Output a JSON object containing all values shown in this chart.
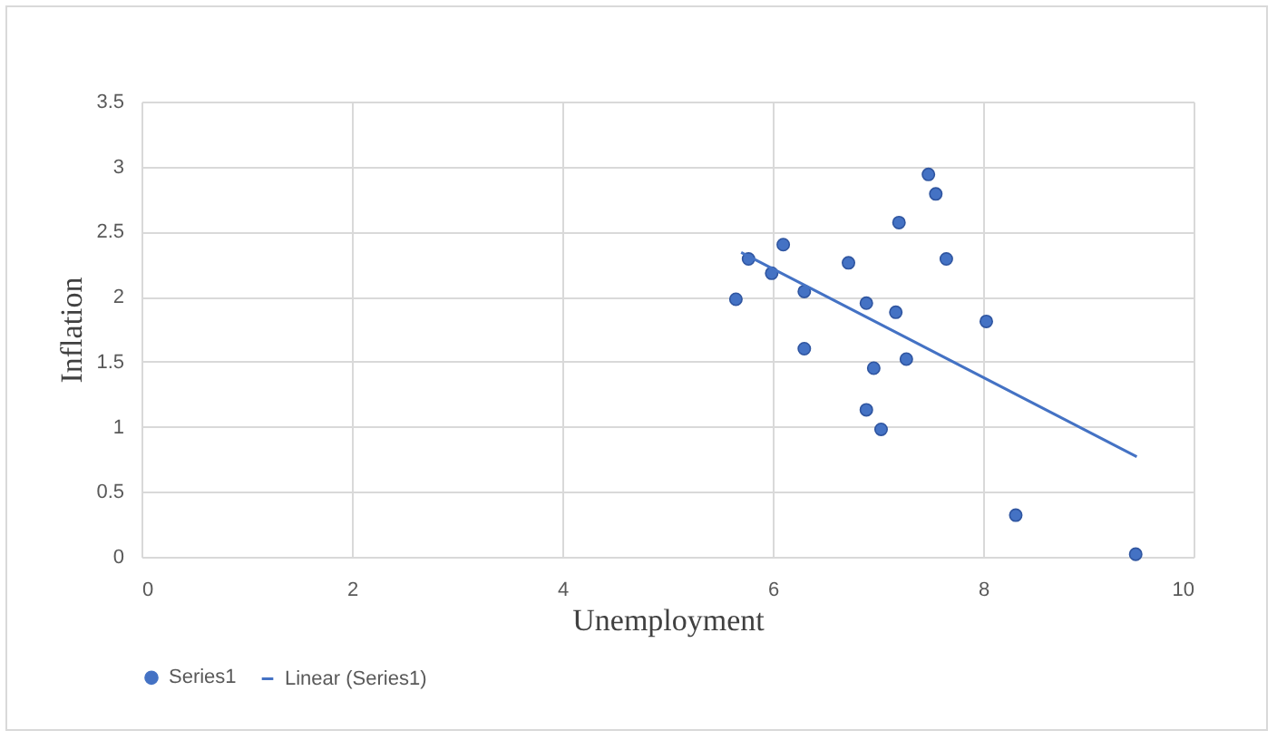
{
  "chart_data": {
    "type": "scatter",
    "xlabel": "Unemployment",
    "ylabel": "Inflation",
    "xlim": [
      0,
      10
    ],
    "xticks": [
      0,
      2,
      4,
      6,
      8,
      10
    ],
    "ylim": [
      0,
      3.5
    ],
    "yticks": [
      0,
      0.5,
      1,
      1.5,
      2,
      2.5,
      3,
      3.5
    ],
    "grid": true,
    "legend": "bottom",
    "series": [
      {
        "name": "Series1",
        "type": "scatter",
        "marker": "circle",
        "color": "#4472c4",
        "x": [
          5.65,
          5.77,
          5.99,
          6.1,
          6.3,
          6.3,
          6.72,
          6.89,
          6.96,
          6.89,
          7.03,
          7.17,
          7.27,
          7.2,
          7.48,
          7.55,
          7.65,
          8.03,
          8.31,
          9.45
        ],
        "values": [
          1.98,
          2.29,
          2.18,
          2.4,
          2.04,
          1.6,
          2.26,
          1.95,
          1.45,
          1.13,
          0.98,
          1.88,
          1.52,
          2.57,
          2.94,
          2.79,
          2.29,
          1.81,
          0.32,
          0.02
        ]
      },
      {
        "name": "Linear (Series1)",
        "type": "line",
        "line_style": "solid",
        "color": "#4472c4",
        "x": [
          5.7,
          9.46
        ],
        "values": [
          2.34,
          0.77
        ]
      }
    ]
  }
}
